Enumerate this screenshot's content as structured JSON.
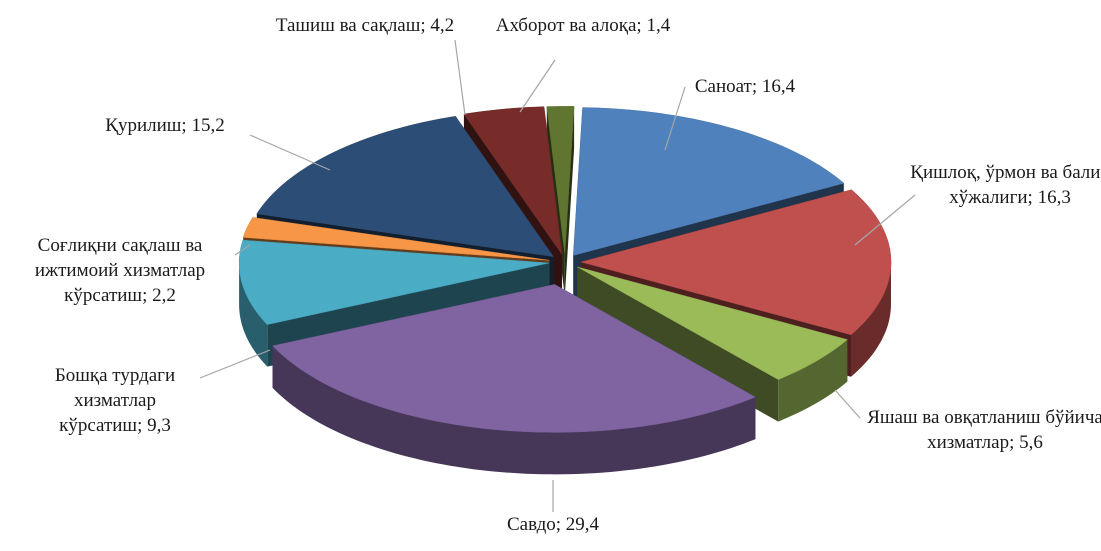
{
  "chart_data": {
    "type": "pie3d",
    "categories": [
      "Саноат",
      "Қишлоқ, ўрмон ва балиқ хўжалиги",
      "Яшаш ва овқатланиш бўйича хизматлар",
      "Савдо",
      "Бошқа турдаги хизматлар кўрсатиш",
      "Соғлиқни сақлаш ва ижтимоий хизматлар кўрсатиш",
      "Қурилиш",
      "Ташиш ва сақлаш",
      "Ахборот ва алоқа"
    ],
    "values": [
      16.4,
      16.3,
      5.6,
      29.4,
      9.3,
      2.2,
      15.2,
      4.2,
      1.4
    ],
    "value_labels": [
      "16,4",
      "16,3",
      "5,6",
      "29,4",
      "9,3",
      "2,2",
      "15,2",
      "4,2",
      "1,4"
    ],
    "label_separator": "; ",
    "colors": [
      "#4f81bd",
      "#c0504d",
      "#9bbb59",
      "#8064a2",
      "#4bacc6",
      "#f79646",
      "#2c4d75",
      "#772c2a",
      "#5f7530"
    ]
  }
}
